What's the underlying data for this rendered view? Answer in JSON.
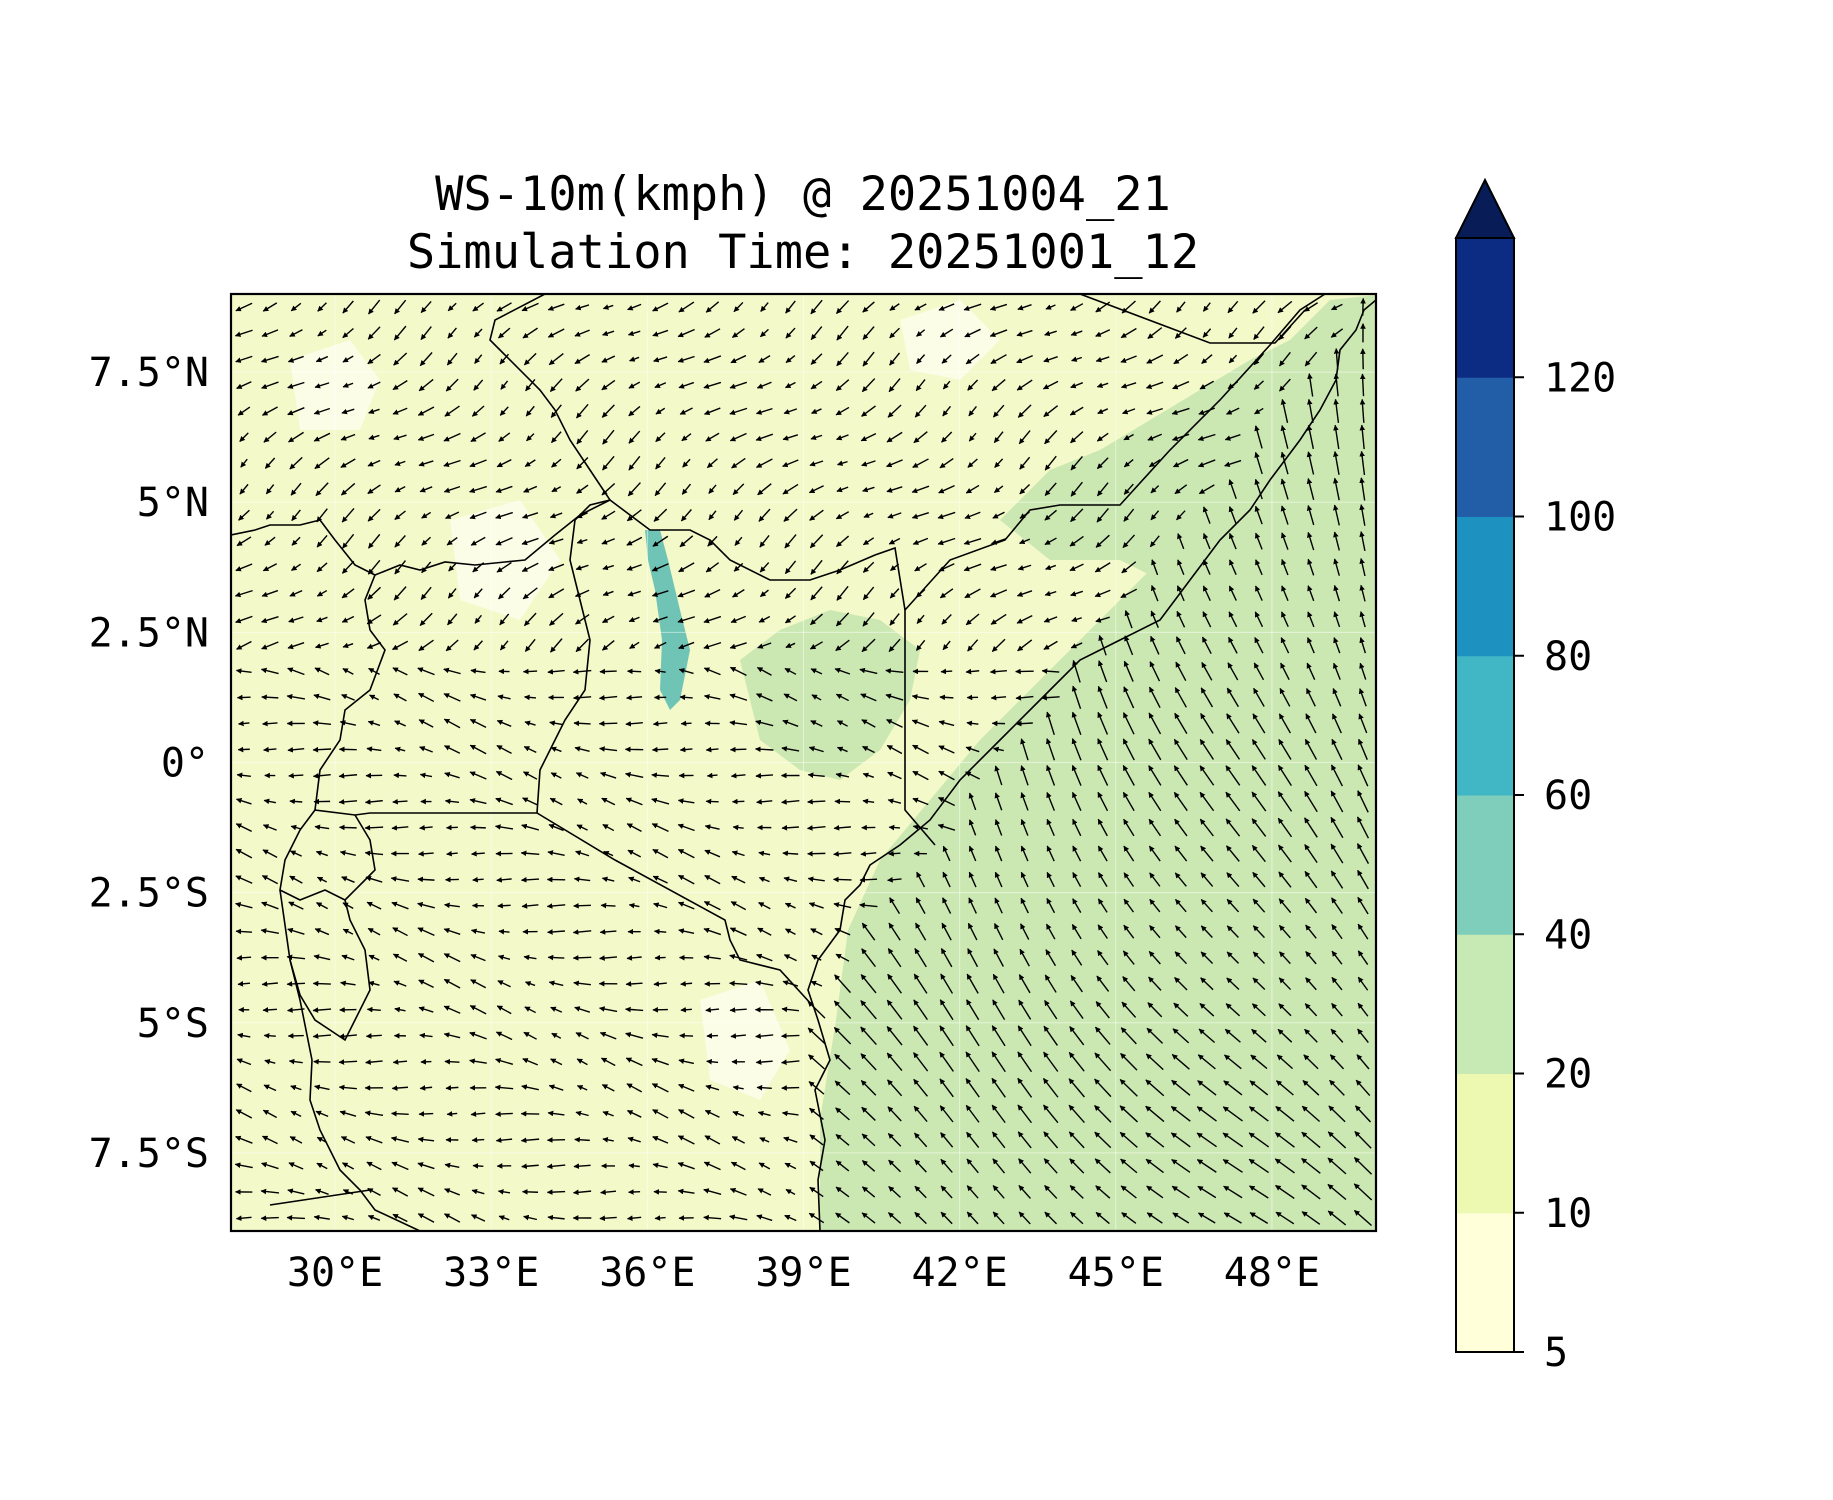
{
  "title_line1": "WS-10m(kmph) @ 20251004_21",
  "title_line2": "Simulation Time: 20251001_12",
  "map": {
    "lon_range": [
      28.0,
      50.0
    ],
    "lat_range": [
      -9.0,
      9.0
    ],
    "lon_ticks": [
      30,
      33,
      36,
      39,
      42,
      45,
      48
    ],
    "lon_tick_labels": [
      "30°E",
      "33°E",
      "36°E",
      "39°E",
      "42°E",
      "45°E",
      "48°E"
    ],
    "lat_ticks": [
      7.5,
      5,
      2.5,
      0,
      -2.5,
      -5,
      -7.5
    ],
    "lat_tick_labels": [
      "7.5°N",
      "5°N",
      "2.5°N",
      "0°",
      "2.5°S",
      "5°S",
      "7.5°S"
    ],
    "gridlines": true,
    "coastlines": true,
    "borders": true,
    "vector_spacing_deg": 0.5
  },
  "colorbar": {
    "levels": [
      5,
      10,
      20,
      40,
      60,
      80,
      100,
      120
    ],
    "tick_labels": [
      "5",
      "10",
      "20",
      "40",
      "60",
      "80",
      "100",
      "120"
    ],
    "colors": [
      "#ffffd9",
      "#edf8b1",
      "#c7e9b4",
      "#7fcdbb",
      "#41b6c4",
      "#1d91c0",
      "#225ea8",
      "#0c2c84"
    ],
    "extend": "max",
    "extend_color": "#081d58"
  }
}
